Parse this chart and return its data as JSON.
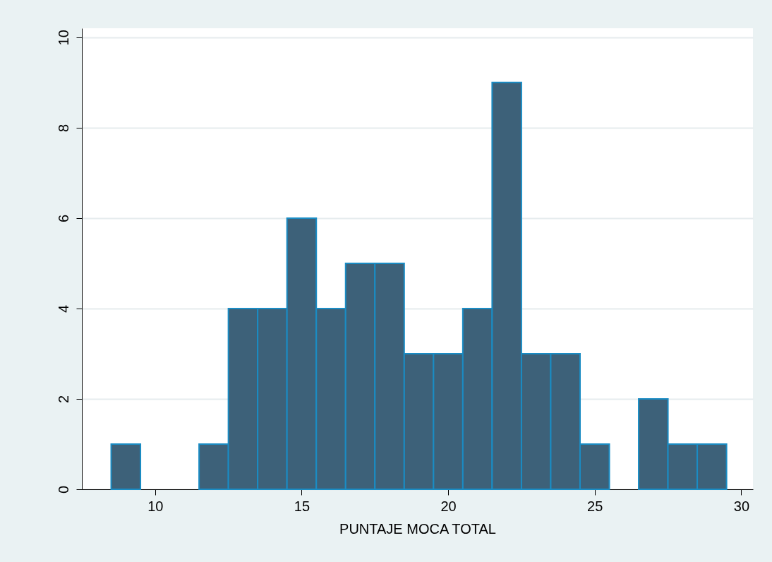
{
  "chart_data": {
    "type": "histogram",
    "xlabel": "PUNTAJE MOCA TOTAL",
    "bins": [
      8.5,
      9.5,
      10.5,
      11.5,
      12.5,
      13.5,
      14.5,
      15.5,
      16.5,
      17.5,
      18.5,
      19.5,
      20.5,
      21.5,
      22.5,
      23.5,
      24.5,
      25.5,
      26.5,
      27.5,
      28.5,
      29.5
    ],
    "values": [
      1,
      0,
      0,
      1,
      4,
      4,
      6,
      4,
      5,
      5,
      3,
      3,
      4,
      9,
      3,
      3,
      1,
      0,
      2,
      1,
      1
    ],
    "color": "#3d6179",
    "xlim": [
      7.5,
      30.4
    ],
    "xticks": [
      10,
      15,
      20,
      25,
      30
    ],
    "ylim": [
      0,
      10.2
    ],
    "yticks": [
      0,
      2,
      4,
      6,
      8,
      10
    ],
    "grid": "y"
  }
}
